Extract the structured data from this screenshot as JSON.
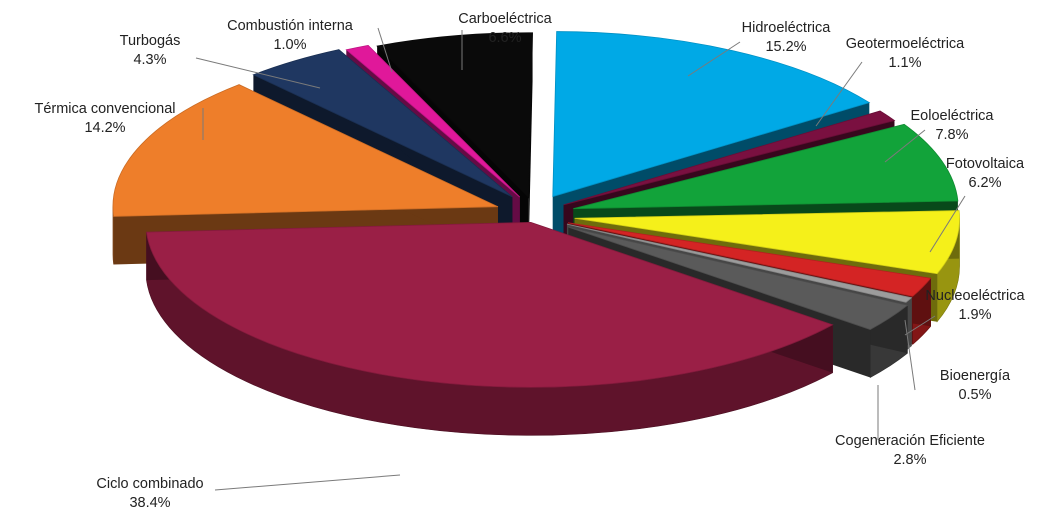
{
  "chart_data": {
    "type": "pie",
    "style": "3d-exploded",
    "title": "",
    "unit": "%",
    "slices": [
      {
        "name": "Hidroeléctrica",
        "value": 15.2,
        "label": "15.2%",
        "color": "#00A9E6"
      },
      {
        "name": "Geotermoeléctrica",
        "value": 1.1,
        "label": "1.1%",
        "color": "#7A1040"
      },
      {
        "name": "Eoloeléctrica",
        "value": 7.8,
        "label": "7.8%",
        "color": "#12A33A"
      },
      {
        "name": "Fotovoltaica",
        "value": 6.2,
        "label": "6.2%",
        "color": "#F5F01A"
      },
      {
        "name": "Nucleoeléctrica",
        "value": 1.9,
        "label": "1.9%",
        "color": "#D42424"
      },
      {
        "name": "Bioenergía",
        "value": 0.5,
        "label": "0.5%",
        "color": "#9C9C9C"
      },
      {
        "name": "Cogeneración Eficiente",
        "value": 2.8,
        "label": "2.8%",
        "color": "#5A5A5A"
      },
      {
        "name": "Ciclo combinado",
        "value": 38.4,
        "label": "38.4%",
        "color": "#9A1F46"
      },
      {
        "name": "Térmica convencional",
        "value": 14.2,
        "label": "14.2%",
        "color": "#EE7E2A"
      },
      {
        "name": "Turbogás",
        "value": 4.3,
        "label": "4.3%",
        "color": "#1F3761"
      },
      {
        "name": "Combustión interna",
        "value": 1.0,
        "label": "1.0%",
        "color": "#E0189A"
      },
      {
        "name": "Carboeléctrica",
        "value": 6.6,
        "label": "6.6%",
        "color": "#0A0A0A"
      }
    ]
  }
}
